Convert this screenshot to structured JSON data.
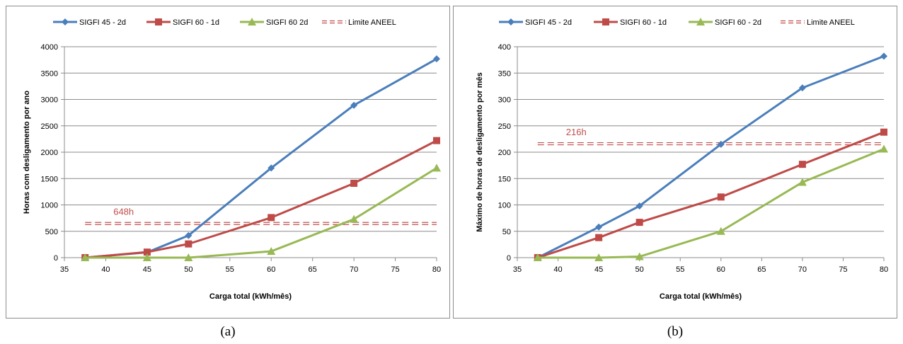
{
  "charts": [
    {
      "caption": "(a)",
      "chart_data": {
        "type": "line",
        "xlabel": "Carga total (kWh/mês)",
        "ylabel": "Horas com desligamento por ano",
        "xlim": [
          35,
          80
        ],
        "ylim": [
          0,
          4000
        ],
        "xticks": [
          "35",
          "40",
          "45",
          "50",
          "55",
          "60",
          "65",
          "70",
          "75",
          "80"
        ],
        "yticks": [
          "0",
          "500",
          "1000",
          "1500",
          "2000",
          "2500",
          "3000",
          "3500",
          "4000"
        ],
        "grid": "horizontal",
        "legend_position": "top",
        "series": [
          {
            "name": "SIGFI 45 - 2d",
            "color": "#4a7ebb",
            "marker": "diamond",
            "x": [
              37.5,
              45,
              50,
              60,
              70,
              80
            ],
            "y": [
              0,
              100,
              420,
              1700,
              2890,
              3770
            ]
          },
          {
            "name": "SIGFI 60 - 1d",
            "color": "#be4b48",
            "marker": "square",
            "x": [
              37.5,
              45,
              50,
              60,
              70,
              80
            ],
            "y": [
              0,
              105,
              260,
              760,
              1410,
              2220
            ]
          },
          {
            "name": "SIGFI 60 2d",
            "color": "#98b954",
            "marker": "triangle",
            "x": [
              37.5,
              45,
              50,
              60,
              70,
              80
            ],
            "y": [
              0,
              0,
              0,
              120,
              730,
              1700
            ]
          }
        ],
        "reference_line": {
          "name": "Limite ANEEL",
          "color": "#c0504d",
          "y": 648,
          "label": "648h"
        }
      }
    },
    {
      "caption": "(b)",
      "chart_data": {
        "type": "line",
        "xlabel": "Carga total (kWh/mês)",
        "ylabel": "Máximo de horas de desligamento por mês",
        "xlim": [
          35,
          80
        ],
        "ylim": [
          0,
          400
        ],
        "xticks": [
          "35",
          "40",
          "45",
          "50",
          "55",
          "60",
          "65",
          "70",
          "75",
          "80"
        ],
        "yticks": [
          "0",
          "50",
          "100",
          "150",
          "200",
          "250",
          "300",
          "350",
          "400"
        ],
        "grid": "horizontal",
        "legend_position": "top",
        "series": [
          {
            "name": "SIGFI 45 - 2d",
            "color": "#4a7ebb",
            "marker": "diamond",
            "x": [
              37.5,
              45,
              50,
              60,
              70,
              80
            ],
            "y": [
              0,
              58,
              98,
              215,
              322,
              382
            ]
          },
          {
            "name": "SIGFI 60 - 1d",
            "color": "#be4b48",
            "marker": "square",
            "x": [
              37.5,
              45,
              50,
              60,
              70,
              80
            ],
            "y": [
              0,
              38,
              67,
              115,
              177,
              238
            ]
          },
          {
            "name": "SIGFI 60 - 2d",
            "color": "#98b954",
            "marker": "triangle",
            "x": [
              37.5,
              45,
              50,
              60,
              70,
              80
            ],
            "y": [
              0,
              0,
              2,
              50,
              143,
              206
            ]
          }
        ],
        "reference_line": {
          "name": "Limite ANEEL",
          "color": "#c0504d",
          "y": 216,
          "label": "216h"
        }
      }
    }
  ]
}
